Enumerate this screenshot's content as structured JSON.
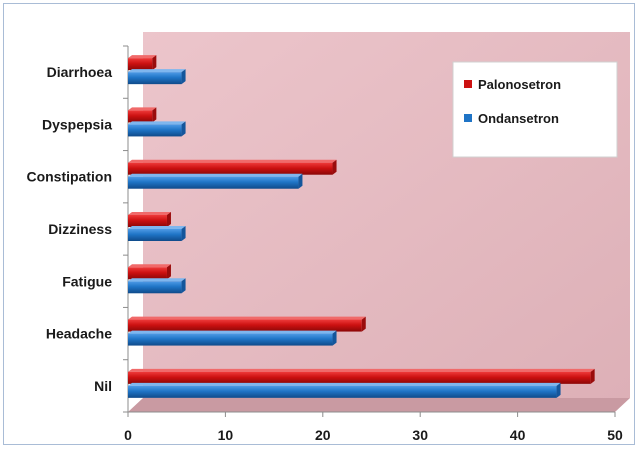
{
  "chart_data": {
    "type": "bar",
    "orientation": "horizontal",
    "categories": [
      "Nil",
      "Headache",
      "Fatigue",
      "Dizziness",
      "Constipation",
      "Dyspepsia",
      "Diarrhoea"
    ],
    "series": [
      {
        "name": "Palonosetron",
        "color": "#cc1111",
        "values": [
          47.5,
          24,
          4,
          4,
          21,
          2.5,
          2.5
        ]
      },
      {
        "name": "Ondansetron",
        "color": "#1f74c6",
        "values": [
          44,
          21,
          5.5,
          5.5,
          17.5,
          5.5,
          5.5
        ]
      }
    ],
    "xlim": [
      0,
      50
    ],
    "xticks": [
      0,
      10,
      20,
      30,
      40,
      50
    ],
    "grid": false,
    "legend_position": "top-right",
    "plot_area_color": "#e3b8bf",
    "title": "",
    "xlabel": "",
    "ylabel": ""
  }
}
